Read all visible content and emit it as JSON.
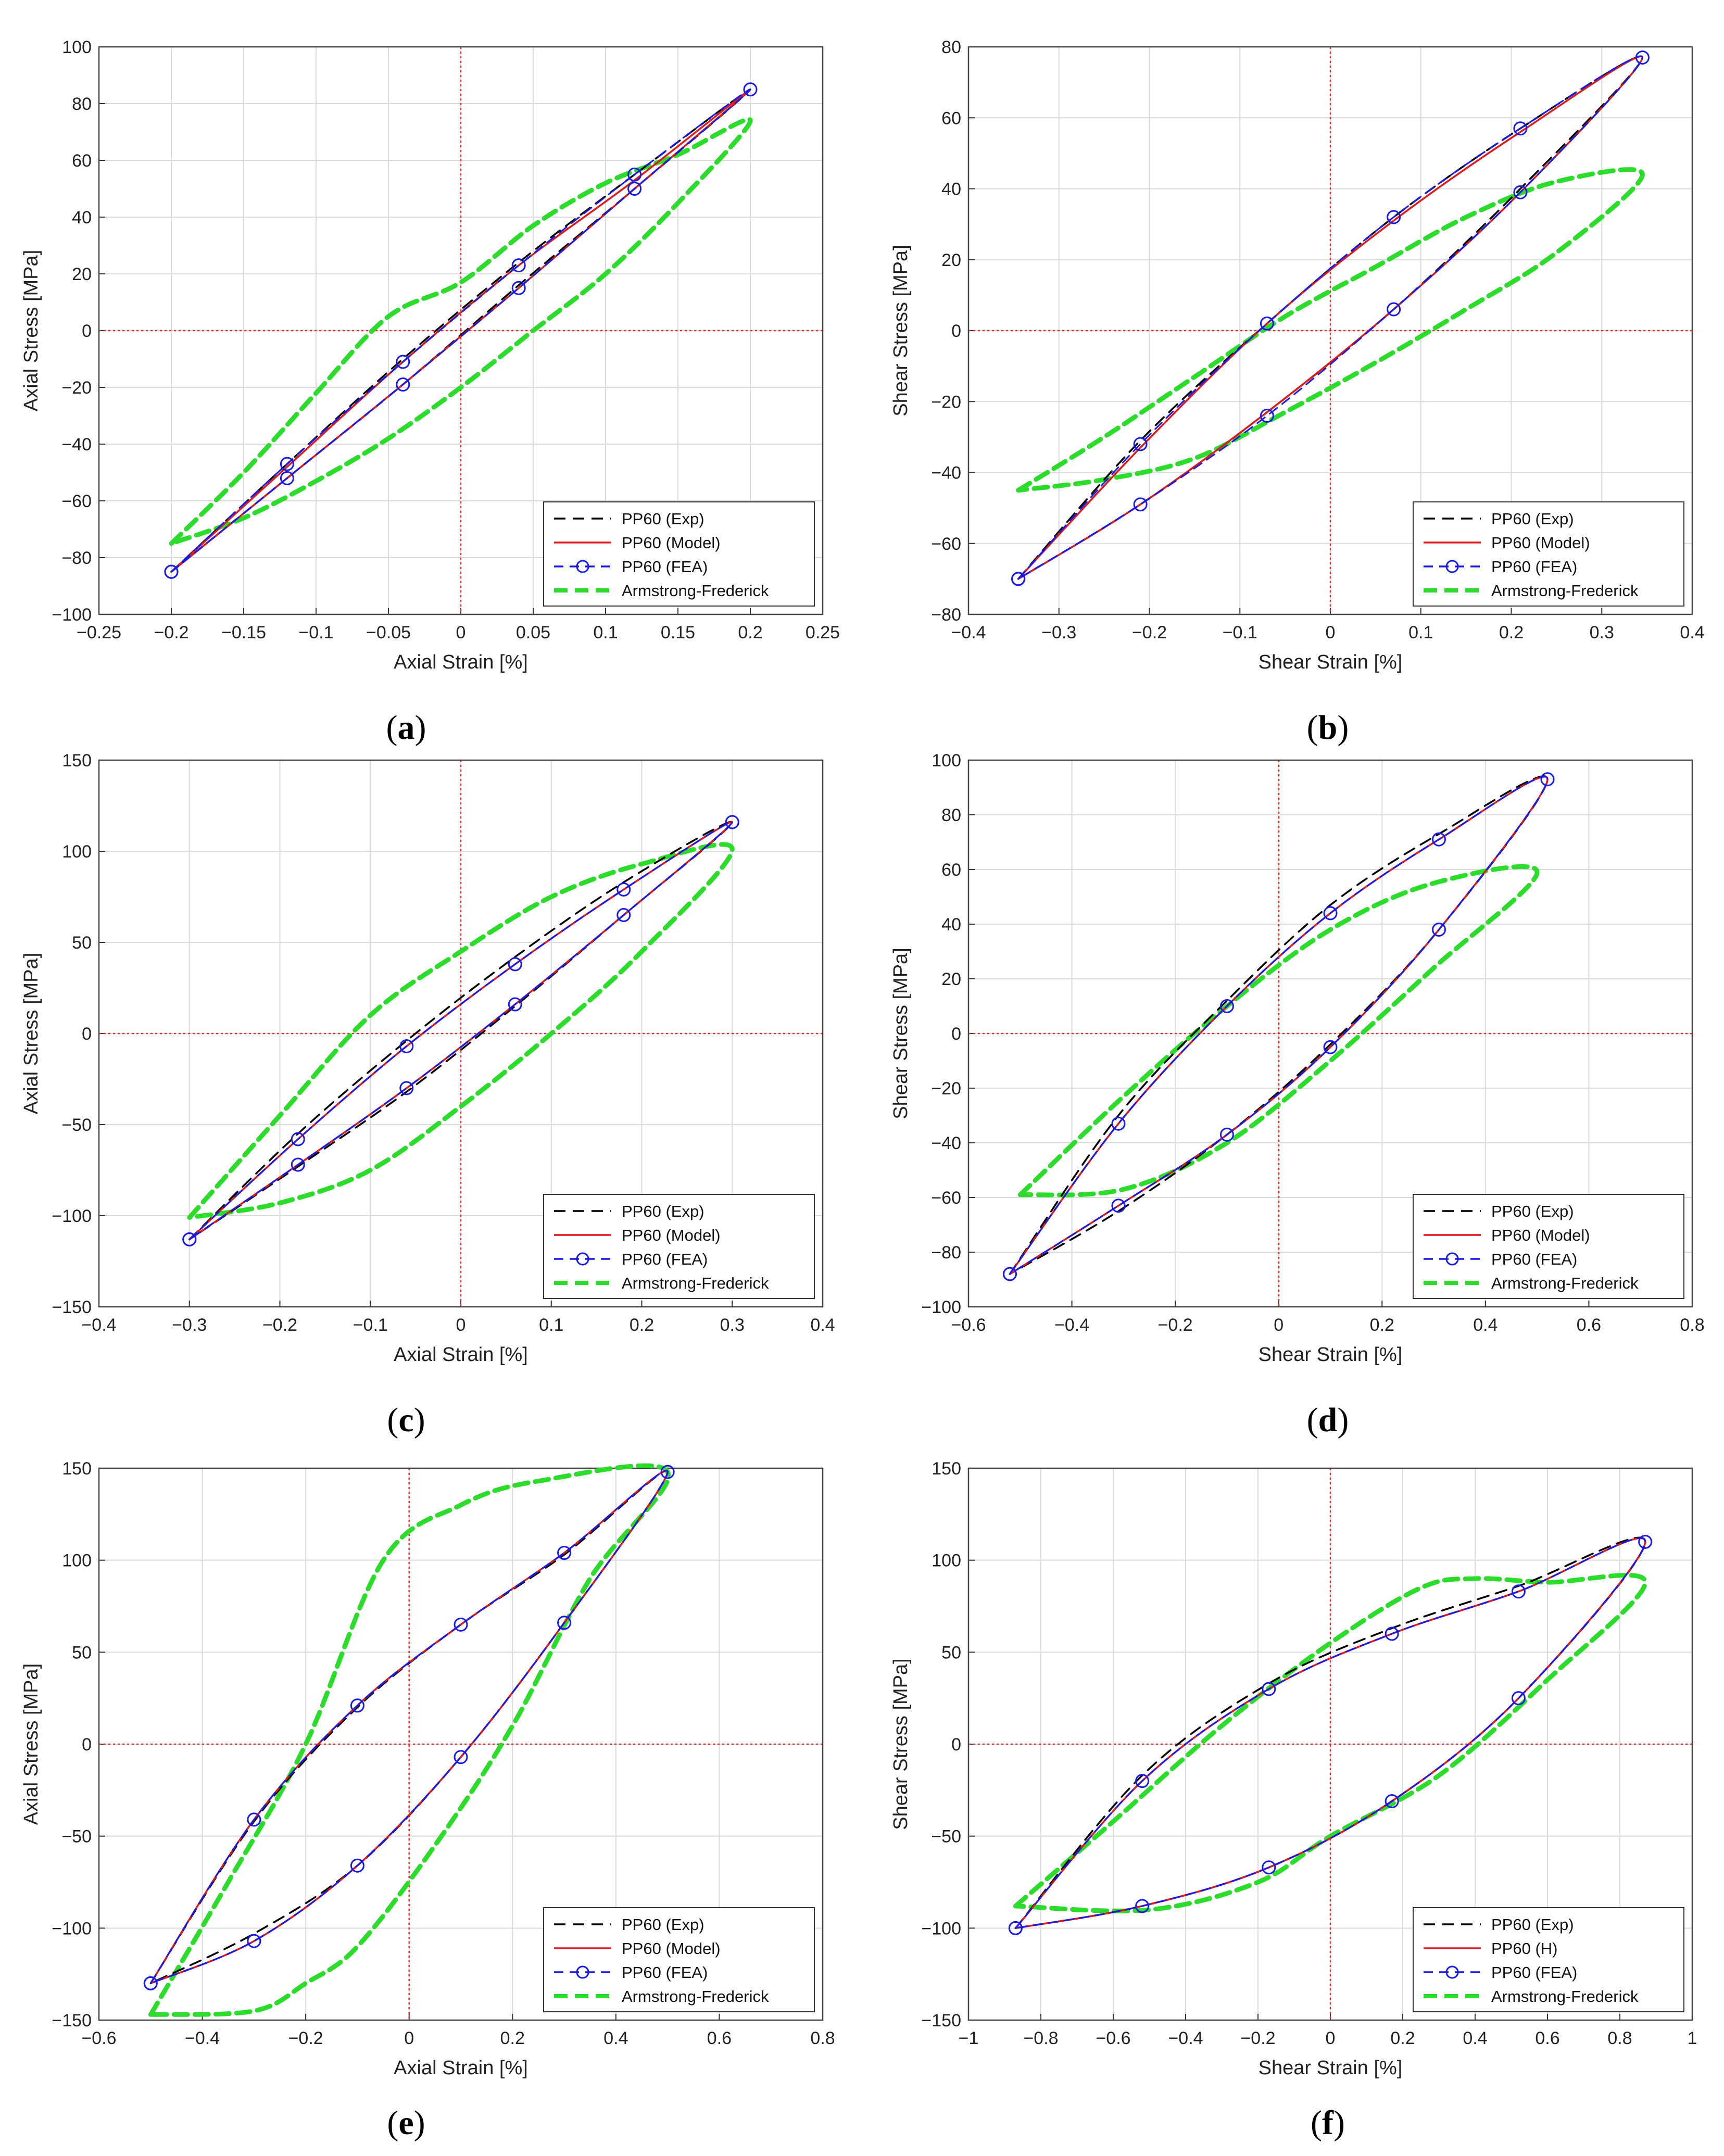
{
  "chart_data": [
    {
      "type": "line",
      "panel": "a",
      "xlabel": "Axial Strain [%]",
      "ylabel": "Axial Stress [MPa]",
      "xlim": [
        -0.25,
        0.25
      ],
      "ylim": [
        -100,
        100
      ],
      "xticks": [
        "-0.25",
        "-0.2",
        "-0.15",
        "-0.1",
        "-0.05",
        "0",
        "0.05",
        "0.1",
        "0.15",
        "0.2",
        "0.25"
      ],
      "yticks": [
        "-100",
        "-80",
        "-60",
        "-40",
        "-20",
        "0",
        "20",
        "40",
        "60",
        "80",
        "100"
      ],
      "legend": [
        "PP60 (Exp)",
        "PP60 (Model)",
        "PP60 (FEA)",
        "Armstrong-Frederick"
      ],
      "legend_position": "bottom-right",
      "peak": [
        0.2,
        85
      ],
      "series": [
        {
          "name": "PP60 (Exp)",
          "x": [
            -0.2,
            -0.12,
            -0.04,
            0.04,
            0.12,
            0.2,
            0.12,
            0.04,
            -0.04,
            -0.12,
            -0.2
          ],
          "y": [
            -85,
            -47,
            -10,
            24,
            55,
            85,
            50,
            16,
            -19,
            -52,
            -85
          ]
        },
        {
          "name": "PP60 (Model)",
          "x": [
            -0.2,
            -0.12,
            -0.04,
            0.04,
            0.12,
            0.2,
            0.12,
            0.04,
            -0.04,
            -0.12,
            -0.2
          ],
          "y": [
            -85,
            -48,
            -11,
            23,
            53,
            85,
            50,
            15,
            -19,
            -52,
            -85
          ]
        },
        {
          "name": "PP60 (FEA)",
          "x": [
            -0.2,
            -0.12,
            -0.04,
            0.04,
            0.12,
            0.2,
            0.12,
            0.04,
            -0.04,
            -0.12,
            -0.2
          ],
          "y": [
            -85,
            -47,
            -11,
            23,
            55,
            85,
            50,
            15,
            -19,
            -52,
            -85
          ]
        },
        {
          "name": "Armstrong-Frederick",
          "x": [
            -0.2,
            -0.15,
            -0.1,
            -0.05,
            0,
            0.05,
            0.1,
            0.15,
            0.2,
            0.15,
            0.1,
            0.05,
            0,
            -0.05,
            -0.1,
            -0.15,
            -0.2
          ],
          "y": [
            -75,
            -50,
            -22,
            5,
            17,
            37,
            52,
            62,
            74,
            45,
            20,
            0,
            -20,
            -38,
            -53,
            -66,
            -75
          ]
        }
      ]
    },
    {
      "type": "line",
      "panel": "b",
      "xlabel": "Shear Strain [%]",
      "ylabel": "Shear Stress [MPa]",
      "xlim": [
        -0.4,
        0.4
      ],
      "ylim": [
        -80,
        80
      ],
      "xticks": [
        "-0.4",
        "-0.3",
        "-0.2",
        "-0.1",
        "0",
        "0.1",
        "0.2",
        "0.3",
        "0.4"
      ],
      "yticks": [
        "-80",
        "-60",
        "-40",
        "-20",
        "0",
        "20",
        "40",
        "60",
        "80"
      ],
      "legend": [
        "PP60 (Exp)",
        "PP60 (Model)",
        "PP60 (FEA)",
        "Armstrong-Frederick"
      ],
      "legend_position": "bottom-right",
      "peak": [
        0.345,
        77
      ],
      "series": [
        {
          "name": "PP60 (Exp)",
          "x": [
            -0.345,
            -0.21,
            -0.07,
            0.07,
            0.21,
            0.345,
            0.21,
            0.07,
            -0.07,
            -0.21,
            -0.345
          ],
          "y": [
            -70,
            -31,
            2,
            32,
            57,
            77,
            40,
            6,
            -23,
            -49,
            -70
          ]
        },
        {
          "name": "PP60 (Model)",
          "x": [
            -0.345,
            -0.21,
            -0.07,
            0.07,
            0.21,
            0.345,
            0.21,
            0.07,
            -0.07,
            -0.21,
            -0.345
          ],
          "y": [
            -70,
            -33,
            2,
            31,
            56,
            77,
            39,
            6,
            -23,
            -49,
            -70
          ]
        },
        {
          "name": "PP60 (FEA)",
          "x": [
            -0.345,
            -0.21,
            -0.07,
            0.07,
            0.21,
            0.345,
            0.21,
            0.07,
            -0.07,
            -0.21,
            -0.345
          ],
          "y": [
            -70,
            -32,
            2,
            32,
            57,
            77,
            39,
            6,
            -24,
            -49,
            -70
          ]
        },
        {
          "name": "Armstrong-Frederick",
          "x": [
            -0.345,
            -0.25,
            -0.15,
            -0.05,
            0.05,
            0.15,
            0.25,
            0.345,
            0.25,
            0.15,
            0.05,
            -0.05,
            -0.15,
            -0.25,
            -0.345
          ],
          "y": [
            -45,
            -30,
            -13,
            4,
            18,
            32,
            42,
            44,
            22,
            6,
            -9,
            -23,
            -36,
            -42,
            -45
          ]
        }
      ]
    },
    {
      "type": "line",
      "panel": "c",
      "xlabel": "Axial Strain [%]",
      "ylabel": "Axial Stress [MPa]",
      "xlim": [
        -0.4,
        0.4
      ],
      "ylim": [
        -150,
        150
      ],
      "xticks": [
        "-0.4",
        "-0.3",
        "-0.2",
        "-0.1",
        "0",
        "0.1",
        "0.2",
        "0.3",
        "0.4"
      ],
      "yticks": [
        "-150",
        "-100",
        "-50",
        "0",
        "50",
        "100",
        "150"
      ],
      "legend": [
        "PP60 (Exp)",
        "PP60 (Model)",
        "PP60 (FEA)",
        "Armstrong-Frederick"
      ],
      "legend_position": "bottom-right",
      "peak": [
        0.3,
        116
      ],
      "series": [
        {
          "name": "PP60 (Exp)",
          "x": [
            -0.3,
            -0.18,
            -0.06,
            0.06,
            0.18,
            0.3,
            0.18,
            0.06,
            -0.06,
            -0.18,
            -0.3
          ],
          "y": [
            -113,
            -55,
            -4,
            42,
            83,
            116,
            65,
            15,
            -32,
            -73,
            -113
          ]
        },
        {
          "name": "PP60 (Model)",
          "x": [
            -0.3,
            -0.18,
            -0.06,
            0.06,
            0.18,
            0.3,
            0.18,
            0.06,
            -0.06,
            -0.18,
            -0.3
          ],
          "y": [
            -113,
            -58,
            -7,
            38,
            79,
            116,
            65,
            16,
            -30,
            -72,
            -113
          ]
        },
        {
          "name": "PP60 (FEA)",
          "x": [
            -0.3,
            -0.18,
            -0.06,
            0.06,
            0.18,
            0.3,
            0.18,
            0.06,
            -0.06,
            -0.18,
            -0.3
          ],
          "y": [
            -113,
            -58,
            -7,
            38,
            79,
            116,
            65,
            16,
            -30,
            -72,
            -113
          ]
        },
        {
          "name": "Armstrong-Frederick",
          "x": [
            -0.3,
            -0.2,
            -0.1,
            0,
            0.1,
            0.2,
            0.3,
            0.2,
            0.1,
            0,
            -0.1,
            -0.2,
            -0.3
          ],
          "y": [
            -101,
            -45,
            10,
            45,
            75,
            93,
            101,
            45,
            0,
            -40,
            -75,
            -93,
            -101
          ]
        }
      ]
    },
    {
      "type": "line",
      "panel": "d",
      "xlabel": "Shear Strain [%]",
      "ylabel": "Shear Stress [MPa]",
      "xlim": [
        -0.6,
        0.8
      ],
      "ylim": [
        -100,
        100
      ],
      "xticks": [
        "-0.6",
        "-0.4",
        "-0.2",
        "0",
        "0.2",
        "0.4",
        "0.6",
        "0.8"
      ],
      "yticks": [
        "-100",
        "-80",
        "-60",
        "-40",
        "-20",
        "0",
        "20",
        "40",
        "60",
        "80",
        "100"
      ],
      "legend": [
        "PP60 (Exp)",
        "PP60 (Model)",
        "PP60 (FEA)",
        "Armstrong-Frederick"
      ],
      "legend_position": "bottom-right",
      "peak": [
        0.52,
        93
      ],
      "series": [
        {
          "name": "PP60 (Exp)",
          "x": [
            -0.52,
            -0.31,
            -0.1,
            0.1,
            0.31,
            0.52,
            0.31,
            0.1,
            -0.1,
            -0.31,
            -0.52
          ],
          "y": [
            -88,
            -30,
            12,
            47,
            73,
            93,
            38,
            -4,
            -37,
            -65,
            -88
          ]
        },
        {
          "name": "PP60 (Model)",
          "x": [
            -0.52,
            -0.31,
            -0.1,
            0.1,
            0.31,
            0.52,
            0.31,
            0.1,
            -0.1,
            -0.31,
            -0.52
          ],
          "y": [
            -88,
            -33,
            10,
            44,
            71,
            93,
            38,
            -5,
            -37,
            -63,
            -88
          ]
        },
        {
          "name": "PP60 (FEA)",
          "x": [
            -0.52,
            -0.31,
            -0.1,
            0.1,
            0.31,
            0.52,
            0.31,
            0.1,
            -0.1,
            -0.31,
            -0.52
          ],
          "y": [
            -88,
            -33,
            10,
            44,
            71,
            93,
            38,
            -5,
            -37,
            -63,
            -88
          ]
        },
        {
          "name": "Armstrong-Frederick",
          "x": [
            -0.5,
            -0.3,
            -0.1,
            0.1,
            0.3,
            0.5,
            0.3,
            0.1,
            -0.1,
            -0.3,
            -0.5
          ],
          "y": [
            -59,
            -23,
            10,
            38,
            55,
            59,
            24,
            -10,
            -40,
            -57,
            -59
          ]
        }
      ]
    },
    {
      "type": "line",
      "panel": "e",
      "xlabel": "Axial Strain [%]",
      "ylabel": "Axial Stress [MPa]",
      "xlim": [
        -0.6,
        0.8
      ],
      "ylim": [
        -150,
        150
      ],
      "xticks": [
        "-0.6",
        "-0.4",
        "-0.2",
        "0",
        "0.2",
        "0.4",
        "0.6",
        "0.8"
      ],
      "yticks": [
        "-150",
        "-100",
        "-50",
        "0",
        "50",
        "100",
        "150"
      ],
      "legend": [
        "PP60 (Exp)",
        "PP60 (Model)",
        "PP60 (FEA)",
        "Armstrong-Frederick"
      ],
      "legend_position": "bottom-right",
      "peak": [
        0.5,
        148
      ],
      "series": [
        {
          "name": "PP60 (Exp)",
          "x": [
            -0.5,
            -0.3,
            -0.1,
            0.1,
            0.3,
            0.5,
            0.3,
            0.1,
            -0.1,
            -0.3,
            -0.5
          ],
          "y": [
            -130,
            -42,
            20,
            65,
            103,
            148,
            66,
            -7,
            -66,
            -103,
            -130
          ]
        },
        {
          "name": "PP60 (Model)",
          "x": [
            -0.5,
            -0.3,
            -0.1,
            0.1,
            0.3,
            0.5,
            0.3,
            0.1,
            -0.1,
            -0.3,
            -0.5
          ],
          "y": [
            -130,
            -41,
            21,
            65,
            104,
            148,
            66,
            -7,
            -66,
            -107,
            -130
          ]
        },
        {
          "name": "PP60 (FEA)",
          "x": [
            -0.5,
            -0.3,
            -0.1,
            0.1,
            0.3,
            0.5,
            0.3,
            0.1,
            -0.1,
            -0.3,
            -0.5
          ],
          "y": [
            -130,
            -41,
            21,
            65,
            104,
            148,
            66,
            -7,
            -66,
            -107,
            -130
          ]
        },
        {
          "name": "Armstrong-Frederick",
          "x": [
            -0.5,
            -0.35,
            -0.2,
            -0.05,
            0.1,
            0.25,
            0.5,
            0.35,
            0.2,
            0.05,
            -0.1,
            -0.2,
            -0.3,
            -0.5
          ],
          "y": [
            -147,
            -75,
            0,
            100,
            130,
            143,
            148,
            90,
            10,
            -55,
            -110,
            -130,
            -145,
            -147
          ]
        }
      ]
    },
    {
      "type": "line",
      "panel": "f",
      "xlabel": "Shear Strain [%]",
      "ylabel": "Shear Stress [MPa]",
      "xlim": [
        -1,
        1
      ],
      "ylim": [
        -150,
        150
      ],
      "xticks": [
        "-1",
        "-0.8",
        "-0.6",
        "-0.4",
        "-0.2",
        "0",
        "0.2",
        "0.4",
        "0.6",
        "0.8",
        "1"
      ],
      "yticks": [
        "-150",
        "-100",
        "-50",
        "0",
        "50",
        "100",
        "150"
      ],
      "legend": [
        "PP60 (Exp)",
        "PP60 (H)",
        "PP60 (FEA)",
        "Armstrong-Frederick"
      ],
      "legend_position": "bottom-right",
      "peak": [
        0.87,
        110
      ],
      "series": [
        {
          "name": "PP60 (Exp)",
          "x": [
            -0.87,
            -0.52,
            -0.17,
            0.17,
            0.52,
            0.87,
            0.52,
            0.17,
            -0.17,
            -0.52,
            -0.87
          ],
          "y": [
            -100,
            -17,
            33,
            63,
            86,
            110,
            25,
            -31,
            -67,
            -88,
            -100
          ]
        },
        {
          "name": "PP60 (H)",
          "x": [
            -0.87,
            -0.52,
            -0.17,
            0.17,
            0.52,
            0.87,
            0.52,
            0.17,
            -0.17,
            -0.52,
            -0.87
          ],
          "y": [
            -100,
            -20,
            30,
            60,
            83,
            110,
            25,
            -31,
            -67,
            -88,
            -100
          ]
        },
        {
          "name": "PP60 (FEA)",
          "x": [
            -0.87,
            -0.52,
            -0.17,
            0.17,
            0.52,
            0.87,
            0.52,
            0.17,
            -0.17,
            -0.52,
            -0.87
          ],
          "y": [
            -100,
            -20,
            30,
            60,
            83,
            110,
            25,
            -31,
            -67,
            -88,
            -100
          ]
        },
        {
          "name": "Armstrong-Frederick",
          "x": [
            -0.87,
            -0.6,
            -0.3,
            0,
            0.25,
            0.4,
            0.6,
            0.87,
            0.6,
            0.3,
            0,
            -0.2,
            -0.5,
            -0.87
          ],
          "y": [
            -88,
            -42,
            10,
            55,
            85,
            90,
            88,
            88,
            35,
            -17,
            -50,
            -75,
            -90,
            -88
          ]
        }
      ]
    }
  ],
  "captions": [
    "a",
    "b",
    "c",
    "d",
    "e",
    "f"
  ],
  "colors": {
    "exp": "#000000",
    "model": "#e0191b",
    "fea": "#1a1ae6",
    "af": "#2bdc2b",
    "zero": "#e03030",
    "grid": "#dadada"
  }
}
